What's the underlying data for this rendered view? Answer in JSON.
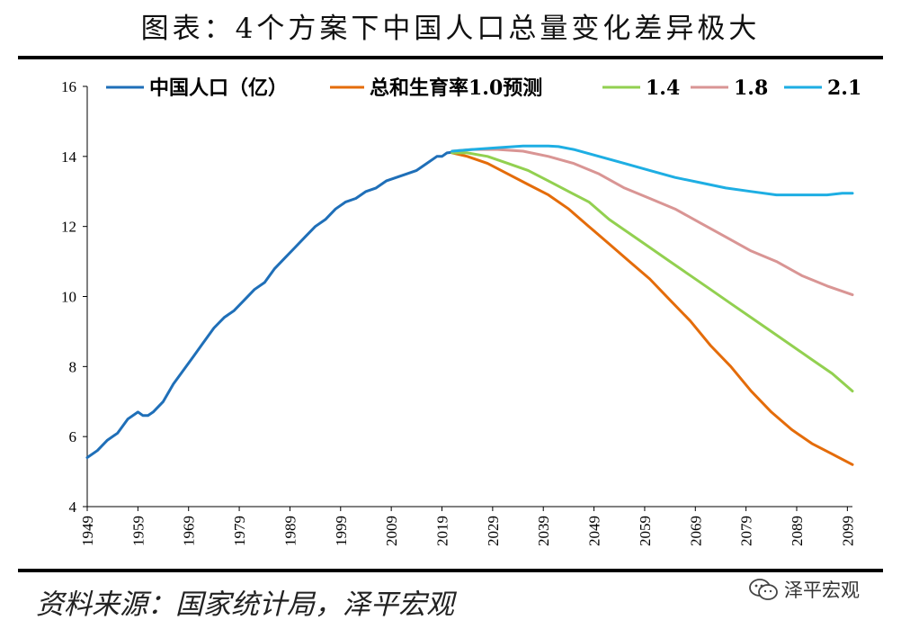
{
  "header": {
    "title": "图表：4个方案下中国人口总量变化差异极大"
  },
  "footer": {
    "source": "资料来源：国家统计局，泽平宏观",
    "watermark": "泽平宏观",
    "watermark_icon": "wechat-icon"
  },
  "colors": {
    "historical": "#1f6fb8",
    "tfr10": "#e46c0a",
    "tfr14": "#92d050",
    "tfr18": "#d99594",
    "tfr21": "#1eaee3",
    "axis": "#000000"
  },
  "chart_data": {
    "type": "line",
    "title": "4个方案下中国人口总量变化差异极大",
    "xlabel": "",
    "ylabel": "",
    "xlim": [
      1949,
      2100
    ],
    "ylim": [
      4,
      16
    ],
    "yticks": [
      "4",
      "6",
      "8",
      "10",
      "12",
      "14",
      "16"
    ],
    "xticks": [
      "1949",
      "1959",
      "1969",
      "1979",
      "1989",
      "1999",
      "2009",
      "2019",
      "2029",
      "2039",
      "2049",
      "2059",
      "2069",
      "2079",
      "2089",
      "2099"
    ],
    "legend_position": "top",
    "series": [
      {
        "key": "historical",
        "name": "中国人口（亿）",
        "x": [
          1949,
          1951,
          1953,
          1955,
          1957,
          1959,
          1960,
          1961,
          1962,
          1964,
          1966,
          1968,
          1970,
          1972,
          1974,
          1976,
          1978,
          1980,
          1982,
          1984,
          1986,
          1988,
          1990,
          1992,
          1994,
          1996,
          1998,
          2000,
          2002,
          2004,
          2006,
          2008,
          2010,
          2012,
          2014,
          2016,
          2018,
          2019,
          2020,
          2021
        ],
        "values": [
          5.4,
          5.6,
          5.9,
          6.1,
          6.5,
          6.7,
          6.6,
          6.6,
          6.7,
          7.0,
          7.5,
          7.9,
          8.3,
          8.7,
          9.1,
          9.4,
          9.6,
          9.9,
          10.2,
          10.4,
          10.8,
          11.1,
          11.4,
          11.7,
          12.0,
          12.2,
          12.5,
          12.7,
          12.8,
          13.0,
          13.1,
          13.3,
          13.4,
          13.5,
          13.6,
          13.8,
          14.0,
          14.0,
          14.1,
          14.12
        ]
      },
      {
        "key": "tfr10",
        "name": "总和生育率1.0预测",
        "x": [
          2021,
          2024,
          2028,
          2032,
          2036,
          2040,
          2044,
          2048,
          2052,
          2056,
          2060,
          2064,
          2068,
          2072,
          2076,
          2080,
          2084,
          2088,
          2092,
          2096,
          2100
        ],
        "values": [
          14.1,
          14.0,
          13.8,
          13.5,
          13.2,
          12.9,
          12.5,
          12.0,
          11.5,
          11.0,
          10.5,
          9.9,
          9.3,
          8.6,
          8.0,
          7.3,
          6.7,
          6.2,
          5.8,
          5.5,
          5.2
        ]
      },
      {
        "key": "tfr14",
        "name": "1.4",
        "x": [
          2021,
          2024,
          2028,
          2032,
          2036,
          2040,
          2044,
          2048,
          2052,
          2056,
          2060,
          2064,
          2068,
          2072,
          2076,
          2080,
          2084,
          2088,
          2092,
          2096,
          2100
        ],
        "values": [
          14.1,
          14.1,
          14.0,
          13.8,
          13.6,
          13.3,
          13.0,
          12.7,
          12.2,
          11.8,
          11.4,
          11.0,
          10.6,
          10.2,
          9.8,
          9.4,
          9.0,
          8.6,
          8.2,
          7.8,
          7.3
        ]
      },
      {
        "key": "tfr18",
        "name": "1.8",
        "x": [
          2021,
          2025,
          2030,
          2035,
          2040,
          2045,
          2050,
          2055,
          2060,
          2065,
          2070,
          2075,
          2080,
          2085,
          2090,
          2095,
          2100
        ],
        "values": [
          14.15,
          14.2,
          14.2,
          14.15,
          14.0,
          13.8,
          13.5,
          13.1,
          12.8,
          12.5,
          12.1,
          11.7,
          11.3,
          11.0,
          10.6,
          10.3,
          10.05
        ]
      },
      {
        "key": "tfr21",
        "name": "2.1",
        "x": [
          2021,
          2025,
          2030,
          2035,
          2040,
          2042,
          2045,
          2050,
          2055,
          2060,
          2065,
          2070,
          2075,
          2080,
          2085,
          2090,
          2095,
          2098,
          2100
        ],
        "values": [
          14.15,
          14.2,
          14.25,
          14.3,
          14.3,
          14.28,
          14.2,
          14.0,
          13.8,
          13.6,
          13.4,
          13.25,
          13.1,
          13.0,
          12.9,
          12.9,
          12.9,
          12.95,
          12.95
        ]
      }
    ]
  }
}
